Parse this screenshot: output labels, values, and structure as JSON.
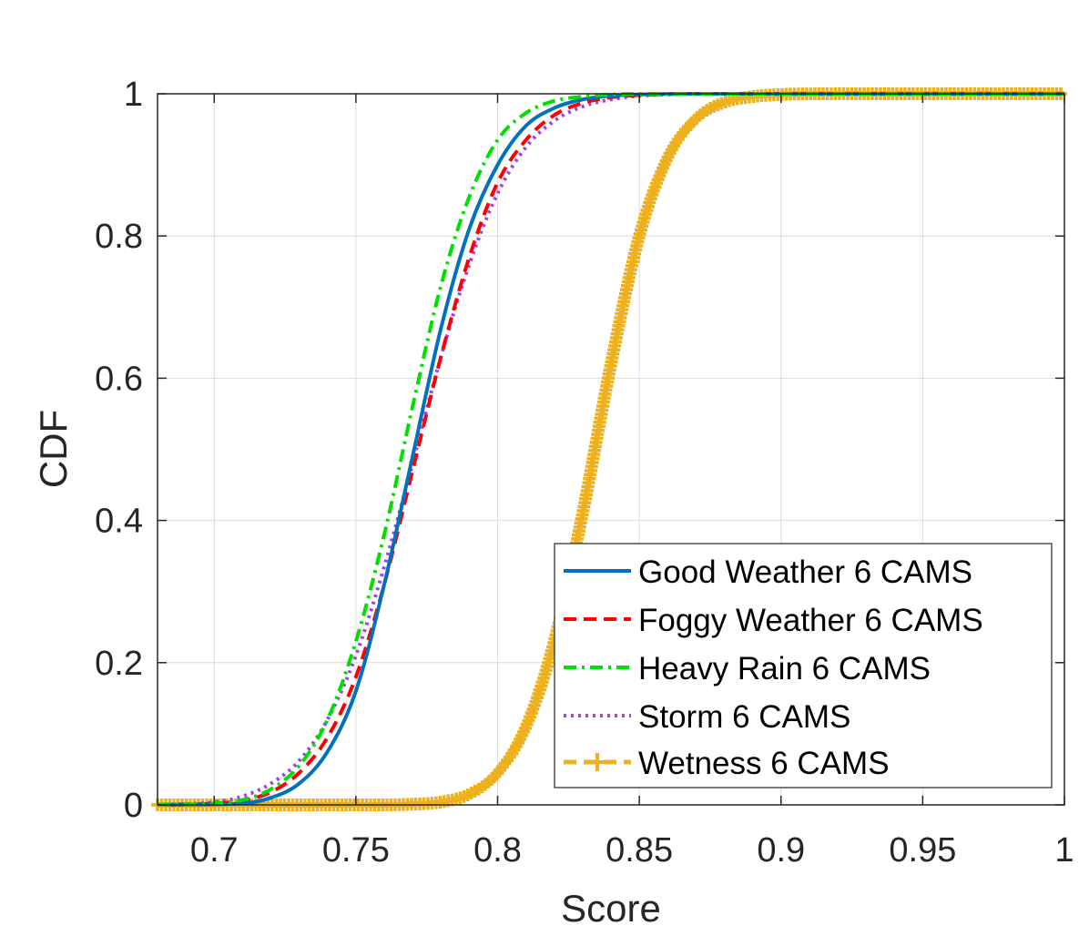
{
  "chart_data": {
    "type": "line",
    "title": "",
    "xlabel": "Score",
    "ylabel": "CDF",
    "xlim": [
      0.68,
      1.0
    ],
    "ylim": [
      0,
      1
    ],
    "grid": true,
    "legend_position": "bottom-right",
    "x_ticks": [
      0.7,
      0.75,
      0.8,
      0.85,
      0.9,
      0.95,
      1.0
    ],
    "x_tick_labels": [
      "0.7",
      "0.75",
      "0.8",
      "0.85",
      "0.9",
      "0.95",
      "1"
    ],
    "y_ticks": [
      0,
      0.2,
      0.4,
      0.6,
      0.8,
      1.0
    ],
    "y_tick_labels": [
      "0",
      "0.2",
      "0.4",
      "0.6",
      "0.8",
      "1"
    ],
    "series": [
      {
        "name": "Good Weather 6 CAMS",
        "color": "#0072BD",
        "style": "solid",
        "x": [
          0.68,
          0.71,
          0.72,
          0.73,
          0.74,
          0.75,
          0.76,
          0.77,
          0.78,
          0.79,
          0.8,
          0.81,
          0.82,
          0.83,
          0.84,
          0.85,
          0.87,
          0.9,
          1.0
        ],
        "y": [
          0,
          0.002,
          0.01,
          0.03,
          0.075,
          0.16,
          0.31,
          0.49,
          0.67,
          0.81,
          0.9,
          0.955,
          0.98,
          0.992,
          0.997,
          0.999,
          1.0,
          1.0,
          1.0
        ]
      },
      {
        "name": "Foggy Weather 6 CAMS",
        "color": "#FF0000",
        "style": "dashed",
        "x": [
          0.68,
          0.7,
          0.71,
          0.72,
          0.73,
          0.74,
          0.75,
          0.76,
          0.77,
          0.78,
          0.79,
          0.8,
          0.81,
          0.82,
          0.83,
          0.84,
          0.85,
          0.87,
          0.9,
          1.0
        ],
        "y": [
          0,
          0.002,
          0.006,
          0.018,
          0.045,
          0.095,
          0.18,
          0.31,
          0.47,
          0.63,
          0.77,
          0.875,
          0.935,
          0.97,
          0.987,
          0.995,
          0.998,
          1.0,
          1.0,
          1.0
        ]
      },
      {
        "name": "Heavy Rain 6 CAMS",
        "color": "#00E000",
        "style": "dashdot",
        "x": [
          0.68,
          0.7,
          0.71,
          0.72,
          0.73,
          0.74,
          0.75,
          0.76,
          0.77,
          0.78,
          0.79,
          0.8,
          0.81,
          0.82,
          0.83,
          0.84,
          0.86,
          0.9,
          1.0
        ],
        "y": [
          0,
          0.002,
          0.007,
          0.022,
          0.055,
          0.12,
          0.23,
          0.38,
          0.56,
          0.73,
          0.855,
          0.935,
          0.973,
          0.99,
          0.996,
          0.999,
          1.0,
          1.0,
          1.0
        ]
      },
      {
        "name": "Storm 6 CAMS",
        "color": "#A040F0",
        "style": "dotted",
        "x": [
          0.68,
          0.69,
          0.7,
          0.71,
          0.72,
          0.73,
          0.74,
          0.75,
          0.76,
          0.77,
          0.78,
          0.79,
          0.8,
          0.81,
          0.82,
          0.83,
          0.84,
          0.85,
          0.86,
          0.88,
          0.9,
          1.0
        ],
        "y": [
          0,
          0.001,
          0.004,
          0.012,
          0.03,
          0.062,
          0.12,
          0.21,
          0.335,
          0.48,
          0.63,
          0.76,
          0.86,
          0.925,
          0.962,
          0.982,
          0.992,
          0.997,
          0.999,
          1.0,
          1.0,
          1.0
        ]
      },
      {
        "name": "Wetness 6 CAMS",
        "color": "#EDB120",
        "style": "dashed-plus",
        "x": [
          0.68,
          0.76,
          0.77,
          0.78,
          0.79,
          0.8,
          0.81,
          0.82,
          0.83,
          0.84,
          0.85,
          0.86,
          0.87,
          0.88,
          0.89,
          0.9,
          0.92,
          0.95,
          1.0
        ],
        "y": [
          0,
          0.0,
          0.001,
          0.004,
          0.015,
          0.045,
          0.11,
          0.23,
          0.41,
          0.62,
          0.8,
          0.91,
          0.965,
          0.988,
          0.996,
          0.999,
          1.0,
          1.0,
          1.0
        ]
      }
    ]
  }
}
